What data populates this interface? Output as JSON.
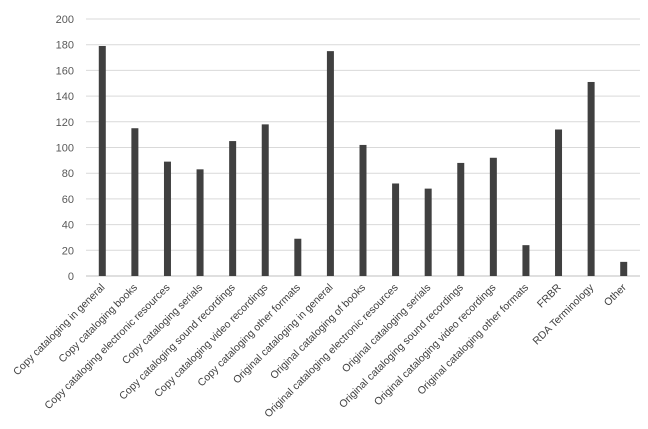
{
  "chart_data": {
    "type": "bar",
    "title": "",
    "xlabel": "",
    "ylabel": "",
    "ylim": [
      0,
      200
    ],
    "yticks": [
      0,
      20,
      40,
      60,
      80,
      100,
      120,
      140,
      160,
      180,
      200
    ],
    "grid": true,
    "legend": "none",
    "bar_color": "#404040",
    "categories": [
      "Copy cataloging in general",
      "Copy cataloging books",
      "Copy cataloging electronic resources",
      "Copy cataloging serials",
      "Copy cataloging sound recordings",
      "Copy cataloging video recordings",
      "Copy cataloging other formats",
      "Original cataloging in general",
      "Original cataloging of books",
      "Original cataloging electronic resources",
      "Original cataloging serials",
      "Original cataloging sound recordings",
      "Original cataloging video recordings",
      "Original cataloging other formats",
      "FRBR",
      "RDA Terminology",
      "Other"
    ],
    "values": [
      179,
      115,
      89,
      83,
      105,
      118,
      29,
      175,
      102,
      72,
      68,
      88,
      92,
      24,
      114,
      151,
      11
    ]
  }
}
